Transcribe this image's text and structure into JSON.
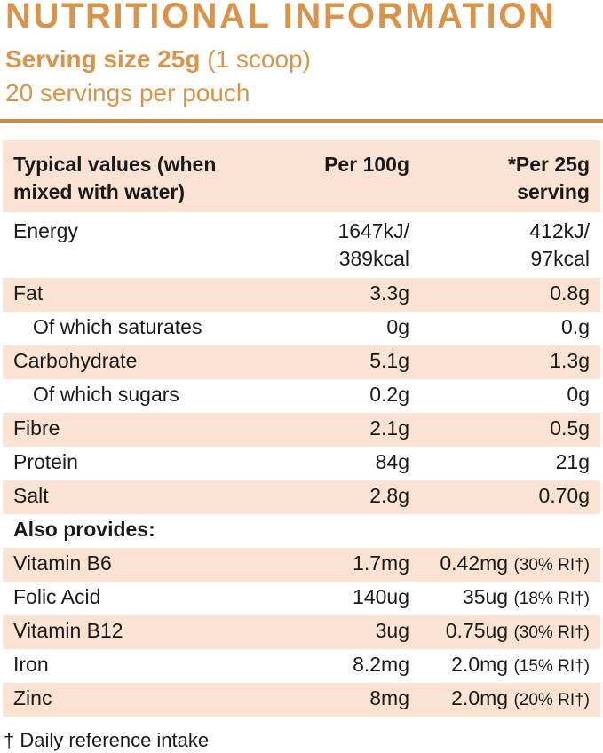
{
  "header": {
    "title": "NUTRITIONAL INFORMATION",
    "serving_size_bold": "Serving size 25g",
    "serving_size_rest": " (1 scoop)",
    "servings": "20 servings per pouch"
  },
  "colors": {
    "accent": "#d9944a",
    "rule": "#cc8a45",
    "shade": "#fbe3d3"
  },
  "table": {
    "headers": [
      "Typical values (when mixed with water)",
      "Per 100g",
      "*Per 25g serving"
    ],
    "rows": [
      {
        "label": "Energy",
        "per100": "1647kJ/ 389kcal",
        "per25": "412kJ/ 97kcal"
      },
      {
        "label": "Fat",
        "per100": "3.3g",
        "per25": "0.8g"
      },
      {
        "label": "Of which saturates",
        "per100": "0g",
        "per25": "0.g"
      },
      {
        "label": "Carbohydrate",
        "per100": "5.1g",
        "per25": "1.3g"
      },
      {
        "label": "Of which sugars",
        "per100": "0.2g",
        "per25": "0g"
      },
      {
        "label": "Fibre",
        "per100": "2.1g",
        "per25": "0.5g"
      },
      {
        "label": "Protein",
        "per100": "84g",
        "per25": "21g"
      },
      {
        "label": "Salt",
        "per100": "2.8g",
        "per25": "0.70g"
      }
    ],
    "also_provides": "Also provides:",
    "vitamins": [
      {
        "label": "Vitamin B6",
        "per100": "1.7mg",
        "per25": "0.42mg",
        "ri": "(30% RI†)"
      },
      {
        "label": "Folic Acid",
        "per100": "140ug",
        "per25": "35ug",
        "ri": "(18% RI†)"
      },
      {
        "label": "Vitamin B12",
        "per100": "3ug",
        "per25": "0.75ug",
        "ri": "(30% RI†)"
      },
      {
        "label": "Iron",
        "per100": "8.2mg",
        "per25": "2.0mg",
        "ri": "(15% RI†)"
      },
      {
        "label": "Zinc",
        "per100": "8mg",
        "per25": "2.0mg",
        "ri": "(20% RI†)"
      }
    ]
  },
  "footnote": "† Daily reference intake"
}
